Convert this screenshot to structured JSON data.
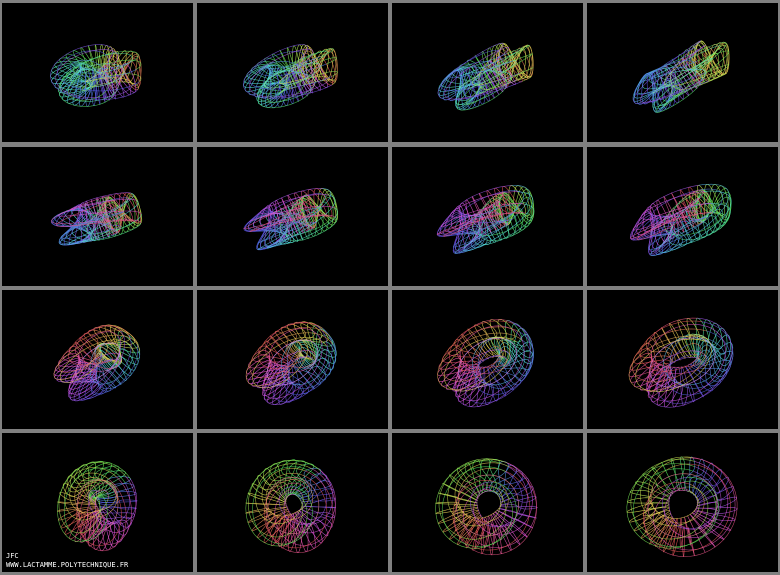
{
  "credit": {
    "author": "JFC",
    "url": "WWW.LACTAMME.POLYTECHNIQUE.FR"
  }
}
